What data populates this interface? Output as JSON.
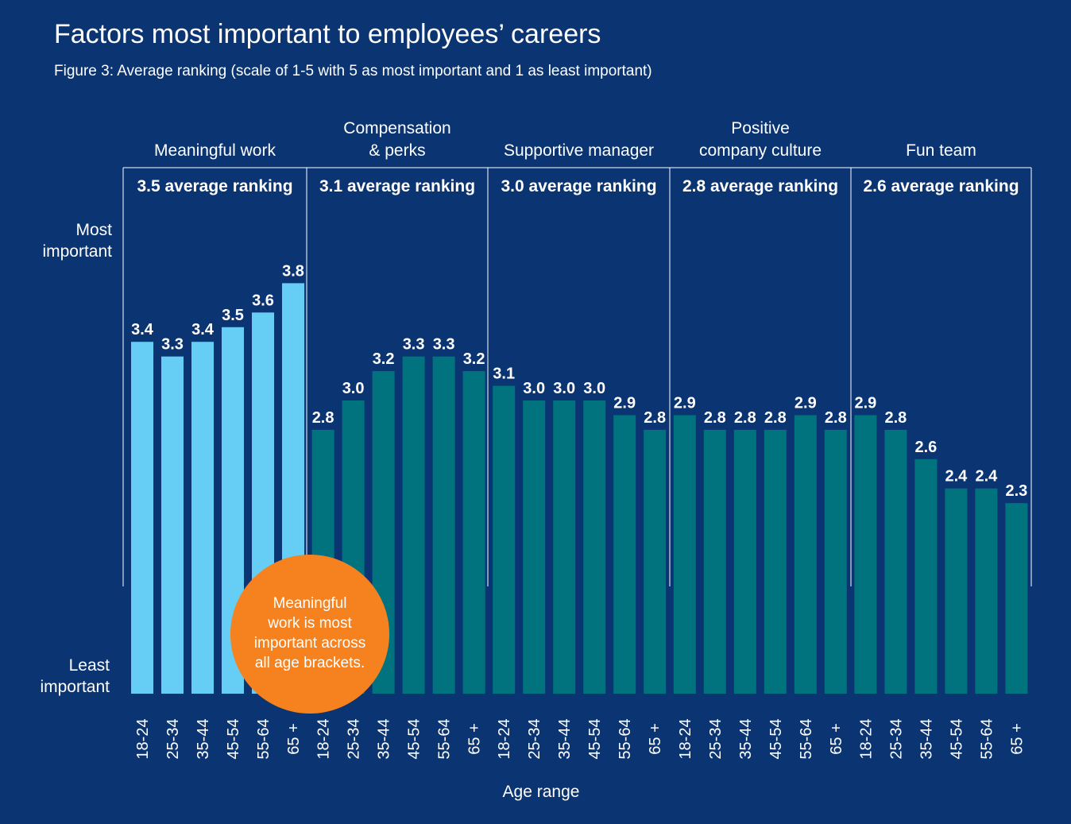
{
  "chart_data": {
    "type": "bar",
    "title": "Factors most important to employees’ careers",
    "subtitle": "Figure 3: Average ranking (scale of 1-5 with 5 as most important and 1 as least important)",
    "xlabel": "Age range",
    "ylabel_top": [
      "Most",
      "important"
    ],
    "ylabel_bottom": [
      "Least",
      "important"
    ],
    "ylim": [
      1,
      5
    ],
    "categories": [
      "18-24",
      "25-34",
      "35-44",
      "45-54",
      "55-64",
      "65 +"
    ],
    "groups": [
      {
        "name": [
          "Meaningful work"
        ],
        "average_label": "3.5 average ranking",
        "values": [
          3.4,
          3.3,
          3.4,
          3.5,
          3.6,
          3.8
        ],
        "color": "#66cdf5"
      },
      {
        "name": [
          "Compensation",
          "& perks"
        ],
        "average_label": "3.1 average ranking",
        "values": [
          2.8,
          3.0,
          3.2,
          3.3,
          3.3,
          3.2
        ],
        "color": "#00737f"
      },
      {
        "name": [
          "Supportive manager"
        ],
        "average_label": "3.0 average ranking",
        "values": [
          3.1,
          3.0,
          3.0,
          3.0,
          2.9,
          2.8
        ],
        "color": "#00737f"
      },
      {
        "name": [
          "Positive",
          "company culture"
        ],
        "average_label": "2.8 average ranking",
        "values": [
          2.9,
          2.8,
          2.8,
          2.8,
          2.9,
          2.8
        ],
        "color": "#00737f"
      },
      {
        "name": [
          "Fun team"
        ],
        "average_label": "2.6 average ranking",
        "values": [
          2.9,
          2.8,
          2.6,
          2.4,
          2.4,
          2.3
        ],
        "color": "#00737f"
      }
    ],
    "annotation": [
      "Meaningful",
      "work is most",
      "important across",
      "all age brackets."
    ],
    "annotation_color": "#f5821f",
    "background": "#0b3472"
  }
}
